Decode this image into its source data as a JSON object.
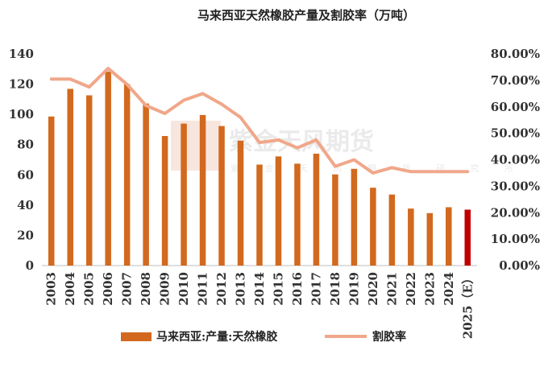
{
  "chart_data": {
    "type": "bar",
    "title": "马来西亚天然橡胶产量及割胶率（万吨）",
    "categories": [
      "2003",
      "2004",
      "2005",
      "2006",
      "2007",
      "2008",
      "2009",
      "2010",
      "2011",
      "2012",
      "2013",
      "2014",
      "2015",
      "2016",
      "2017",
      "2018",
      "2019",
      "2020",
      "2021",
      "2022",
      "2023",
      "2024",
      "2025（E）"
    ],
    "series": [
      {
        "name": "马来西亚:产量:天然橡胶",
        "type": "bar",
        "axis": "left",
        "color": "#D2691E",
        "highlight_color": "#C00000",
        "highlight_index": 22,
        "values": [
          98.6,
          116.9,
          112.6,
          128.3,
          120.0,
          107.2,
          85.7,
          93.9,
          99.6,
          92.3,
          82.6,
          66.8,
          72.2,
          67.4,
          74.0,
          60.3,
          64.0,
          51.5,
          47.0,
          37.7,
          34.7,
          38.6,
          37.0
        ]
      },
      {
        "name": "割胶率",
        "type": "line",
        "axis": "right",
        "color": "#F0A78A",
        "values": [
          0.705,
          0.705,
          0.675,
          0.745,
          0.685,
          0.605,
          0.575,
          0.625,
          0.65,
          0.61,
          0.56,
          0.465,
          0.475,
          0.445,
          0.475,
          0.375,
          0.4,
          0.35,
          0.37,
          0.355,
          0.355,
          0.355,
          0.355
        ]
      }
    ],
    "y_left": {
      "min": 0,
      "max": 140,
      "ticks": [
        0,
        20,
        40,
        60,
        80,
        100,
        120,
        140
      ]
    },
    "y_right": {
      "min": 0,
      "max": 0.8,
      "ticks": [
        "0.00%",
        "10.00%",
        "20.00%",
        "30.00%",
        "40.00%",
        "50.00%",
        "60.00%",
        "70.00%",
        "80.00%"
      ]
    },
    "grid": false,
    "legend_position": "bottom",
    "watermark": {
      "text": "紫金天风期货",
      "sub": "紫 金 天 风 期 货 研 究 所"
    }
  }
}
